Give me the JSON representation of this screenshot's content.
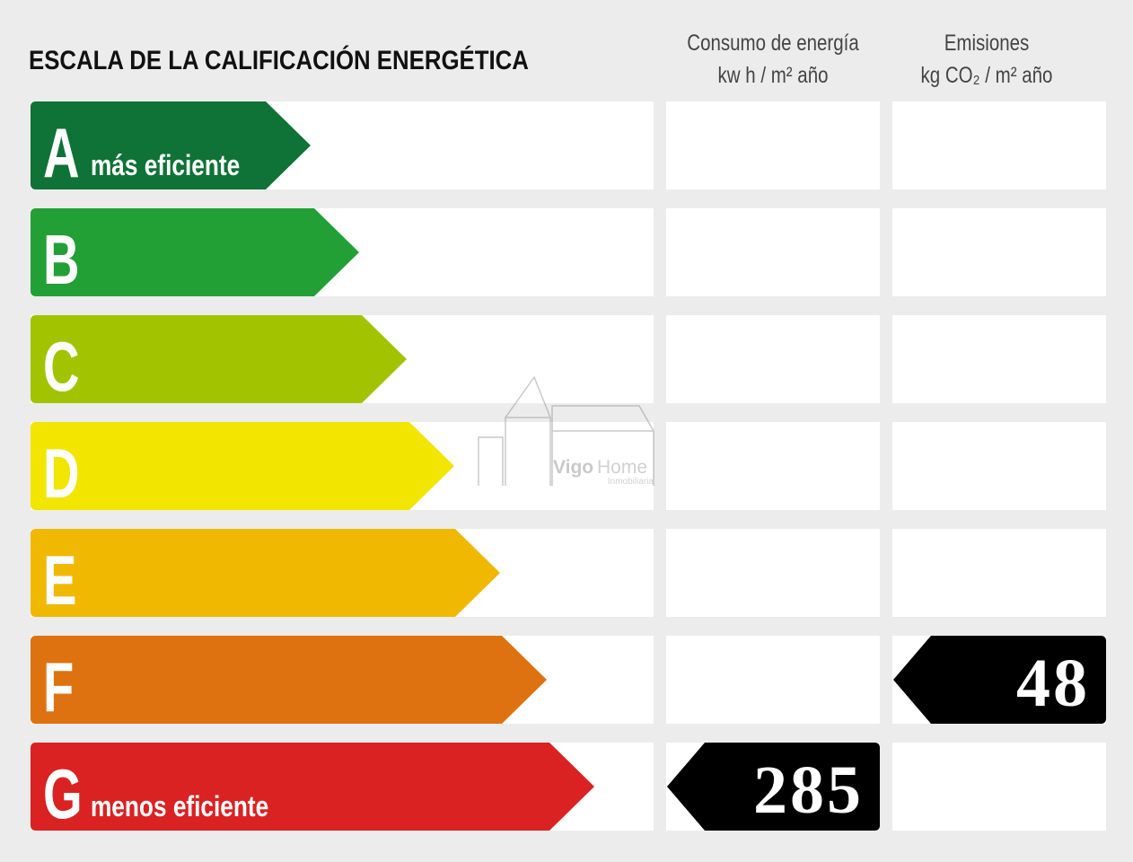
{
  "header": {
    "title": "ESCALA DE LA CALIFICACIÓN ENERGÉTICA",
    "consumption": {
      "title": "Consumo de energía",
      "unit": "kw h / m² año"
    },
    "emissions": {
      "title": "Emisiones",
      "unit": "kg CO₂ / m² año"
    }
  },
  "rows": [
    {
      "letter": "A",
      "note": "más eficiente",
      "color": "#0f7236"
    },
    {
      "letter": "B",
      "color": "#22a036"
    },
    {
      "letter": "C",
      "color": "#a2c400"
    },
    {
      "letter": "D",
      "color": "#f2e500"
    },
    {
      "letter": "E",
      "color": "#f0b800"
    },
    {
      "letter": "F",
      "color": "#df7210",
      "emissions": 48
    },
    {
      "letter": "G",
      "note": "menos eficiente",
      "color": "#da2222",
      "consumption": 285
    }
  ],
  "watermark": {
    "brand": "Vigo",
    "brand2": "Home",
    "sub": "Inmobiliaria"
  }
}
